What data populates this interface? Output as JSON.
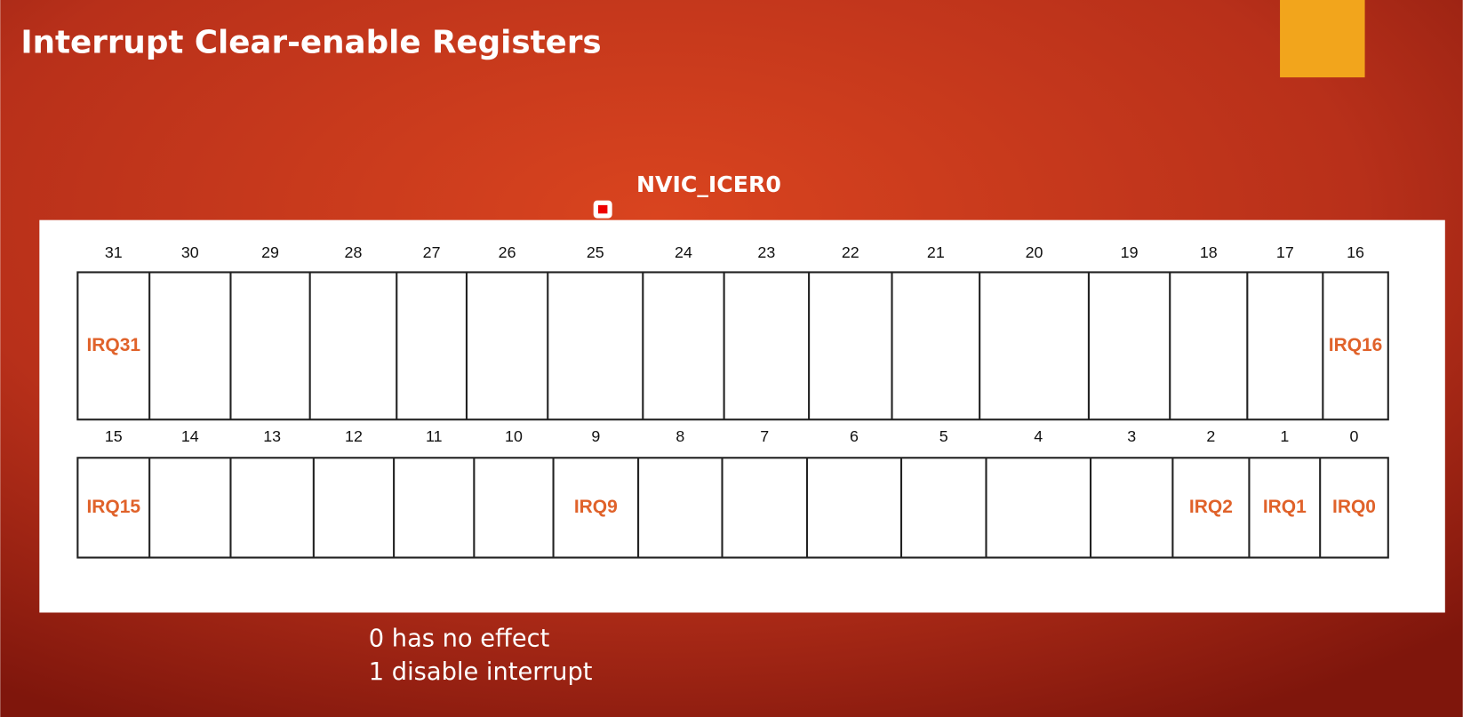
{
  "title": "Interrupt Clear-enable Registers",
  "register": "NVIC_ICER0",
  "rows": [
    {
      "cells": [
        {
          "bit": 31,
          "label": "IRQ31"
        },
        {
          "bit": 30
        },
        {
          "bit": 29
        },
        {
          "bit": 28
        },
        {
          "bit": 27
        },
        {
          "bit": 26
        },
        {
          "bit": 25
        },
        {
          "bit": 24
        },
        {
          "bit": 23
        },
        {
          "bit": 22
        },
        {
          "bit": 21
        },
        {
          "bit": 20
        },
        {
          "bit": 19
        },
        {
          "bit": 18
        },
        {
          "bit": 17
        },
        {
          "bit": 16,
          "label": "IRQ16"
        }
      ]
    },
    {
      "cells": [
        {
          "bit": 15,
          "label": "IRQ15"
        },
        {
          "bit": 14
        },
        {
          "bit": 13
        },
        {
          "bit": 12
        },
        {
          "bit": 11
        },
        {
          "bit": 10
        },
        {
          "bit": 9,
          "label": "IRQ9"
        },
        {
          "bit": 8
        },
        {
          "bit": 7
        },
        {
          "bit": 6
        },
        {
          "bit": 5
        },
        {
          "bit": 4
        },
        {
          "bit": 3
        },
        {
          "bit": 2,
          "label": "IRQ2"
        },
        {
          "bit": 1,
          "label": "IRQ1"
        },
        {
          "bit": 0,
          "label": "IRQ0"
        }
      ]
    }
  ],
  "notes": [
    "0 has no effect",
    "1 disable interrupt"
  ]
}
